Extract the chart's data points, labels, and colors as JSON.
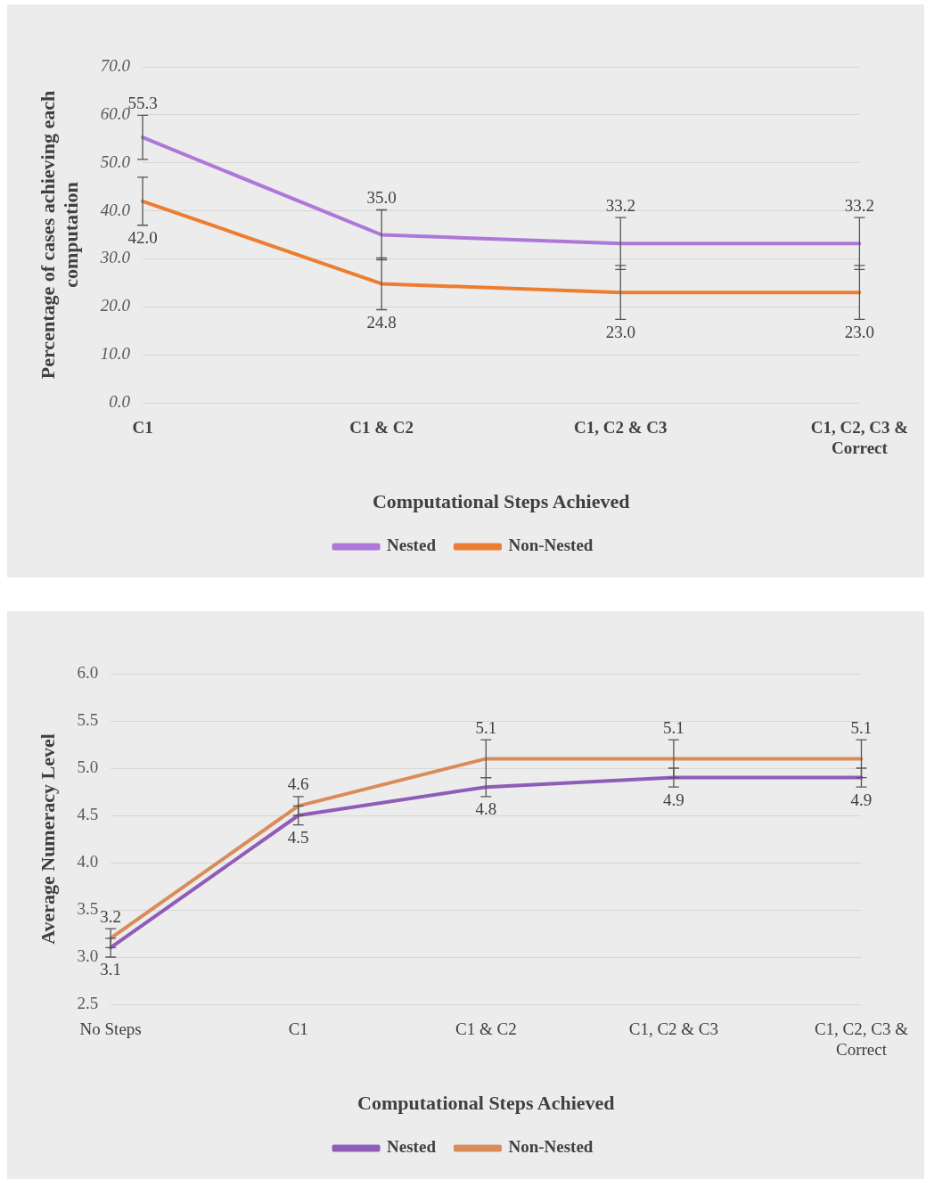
{
  "chart_data": [
    {
      "type": "line",
      "xlabel": "Computational Steps Achieved",
      "ylabel": "Percentage of cases achieving each computation",
      "categories": [
        "C1",
        "C1 & C2",
        "C1, C2 & C3",
        "C1, C2, C3 & Correct"
      ],
      "series": [
        {
          "name": "Nested",
          "color": "#ad78d9",
          "values": [
            55.3,
            35.0,
            33.2,
            33.2
          ],
          "errors": [
            4.6,
            5.2,
            5.4,
            5.4
          ],
          "value_labels": [
            "55.3",
            "35.0",
            "33.2",
            "33.2"
          ]
        },
        {
          "name": "Non-Nested",
          "color": "#ed7d31",
          "values": [
            42.0,
            24.8,
            23.0,
            23.0
          ],
          "errors": [
            5.0,
            5.4,
            5.6,
            5.6
          ],
          "value_labels": [
            "42.0",
            "24.8",
            "23.0",
            "23.0"
          ]
        }
      ],
      "ylim": [
        0,
        70
      ],
      "yticks": [
        {
          "value": 0,
          "label": "0.0"
        },
        {
          "value": 10,
          "label": "10.0"
        },
        {
          "value": 20,
          "label": "20.0"
        },
        {
          "value": 30,
          "label": "30.0"
        },
        {
          "value": 40,
          "label": "40.0"
        },
        {
          "value": 50,
          "label": "50.0"
        },
        {
          "value": 60,
          "label": "60.0"
        },
        {
          "value": 70,
          "label": "70.0"
        }
      ],
      "grid": "y",
      "legend": "bottom",
      "marker": "none",
      "line_style": "solid"
    },
    {
      "type": "line",
      "xlabel": "Computational Steps Achieved",
      "ylabel": "Average Numeracy Level",
      "categories": [
        "No Steps",
        "C1",
        "C1 & C2",
        "C1, C2 & C3",
        "C1, C2, C3 & Correct"
      ],
      "series": [
        {
          "name": "Nested",
          "color": "#8f5cb8",
          "values": [
            3.1,
            4.5,
            4.8,
            4.9,
            4.9
          ],
          "errors": [
            0.1,
            0.1,
            0.1,
            0.1,
            0.1
          ],
          "value_labels": [
            "3.1",
            "4.5",
            "4.8",
            "4.9",
            "4.9"
          ]
        },
        {
          "name": "Non-Nested",
          "color": "#d98c5a",
          "values": [
            3.2,
            4.6,
            5.1,
            5.1,
            5.1
          ],
          "errors": [
            0.1,
            0.1,
            0.2,
            0.2,
            0.2
          ],
          "value_labels": [
            "3.2",
            "4.6",
            "5.1",
            "5.1",
            "5.1"
          ]
        }
      ],
      "ylim": [
        2.5,
        6.0
      ],
      "yticks": [
        2.5,
        {
          "value": 3,
          "label": "3.0"
        },
        3.5,
        {
          "value": 4,
          "label": "4.0"
        },
        4.5,
        {
          "value": 5,
          "label": "5.0"
        },
        5.5,
        {
          "value": 6,
          "label": "6.0"
        }
      ],
      "grid": "y",
      "legend": "bottom",
      "marker": "none",
      "line_style": "solid"
    }
  ]
}
